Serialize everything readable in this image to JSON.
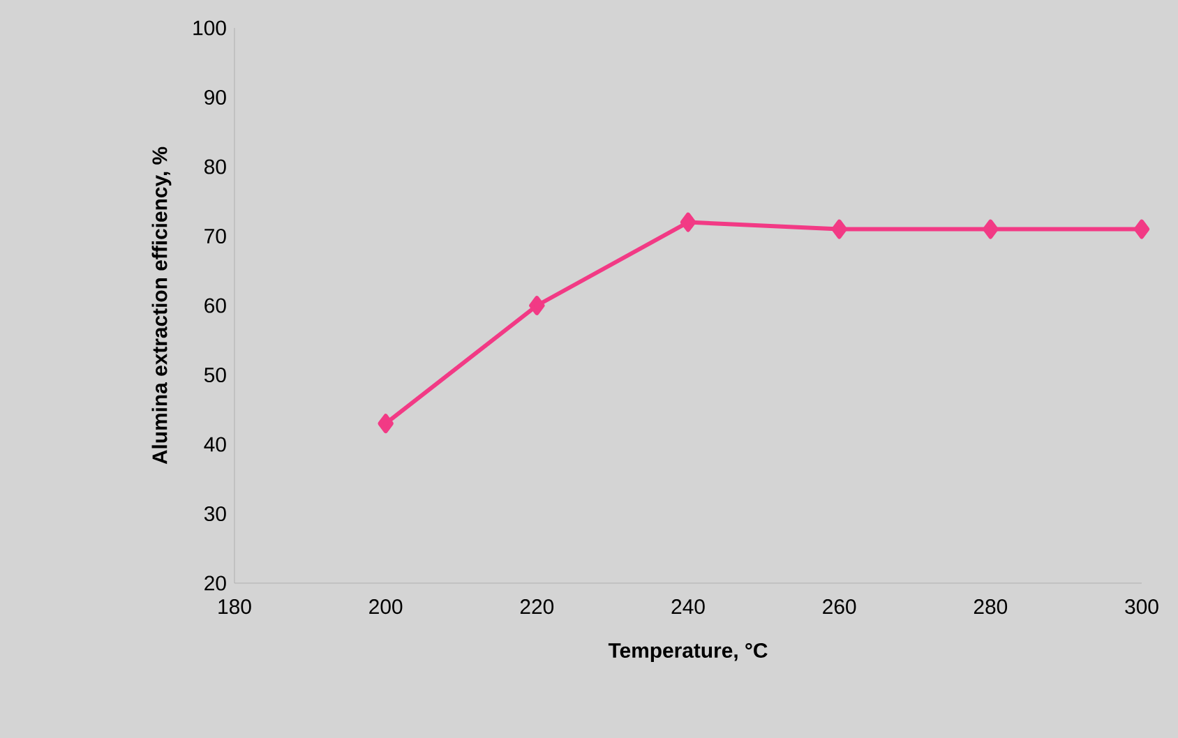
{
  "chart_data": {
    "type": "line",
    "xlabel": "Temperature, °C",
    "ylabel": "Alumina extraction efficiency, %",
    "x": [
      200,
      220,
      240,
      260,
      280,
      300
    ],
    "series": [
      {
        "color": "#f23a85",
        "values": [
          43,
          60,
          72,
          71,
          71,
          71
        ]
      }
    ],
    "xlim": [
      180,
      300
    ],
    "xticks": [
      180,
      200,
      220,
      240,
      260,
      280,
      300
    ],
    "ylim": [
      20,
      100
    ],
    "yticks": [
      20,
      30,
      40,
      50,
      60,
      70,
      80,
      90,
      100
    ],
    "marker": "diamond",
    "line_style": "solid"
  }
}
